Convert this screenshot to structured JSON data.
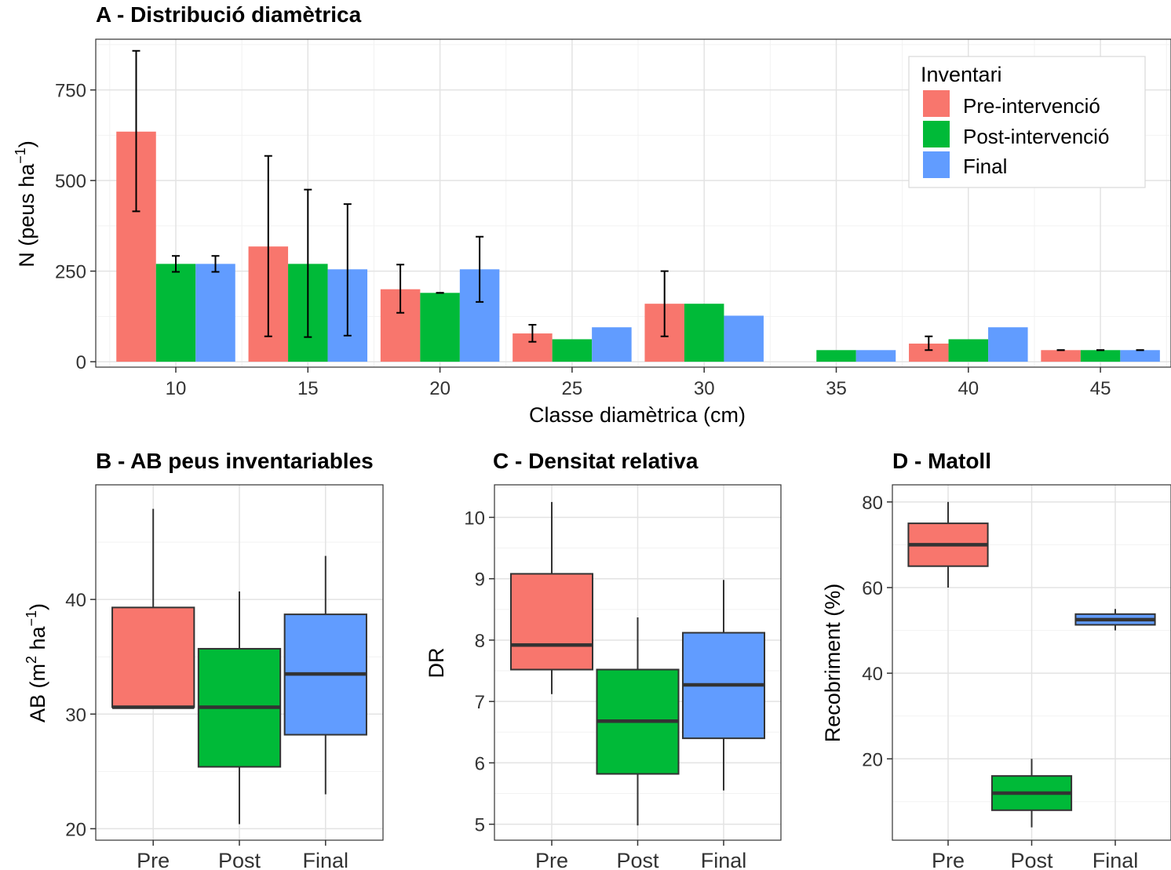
{
  "colors": {
    "pre": "#F8766D",
    "post": "#00BA38",
    "final": "#619CFF"
  },
  "chart_data": [
    {
      "id": "A",
      "type": "bar",
      "title": "A - Distribució diamètrica",
      "xlabel": "Classe diamètrica (cm)",
      "ylabel": {
        "main": "N (peus ha",
        "sup": "−1",
        "end": ")"
      },
      "categories": [
        "10",
        "15",
        "20",
        "25",
        "30",
        "35",
        "40",
        "45"
      ],
      "ylim": [
        -15,
        890
      ],
      "yticks": [
        0,
        250,
        500,
        750
      ],
      "legend": {
        "title": "Inventari",
        "position": "top-right"
      },
      "series": [
        {
          "name": "Pre-intervenció",
          "color": "#F8766D",
          "values": [
            635,
            318,
            200,
            78,
            160,
            null,
            50,
            32
          ],
          "err_low": [
            415,
            70,
            135,
            55,
            70,
            null,
            32,
            32
          ],
          "err_high": [
            858,
            568,
            268,
            102,
            250,
            null,
            70,
            32
          ]
        },
        {
          "name": "Post-intervenció",
          "color": "#00BA38",
          "values": [
            270,
            270,
            190,
            62,
            160,
            32,
            62,
            32
          ],
          "err_low": [
            248,
            68,
            190,
            null,
            null,
            null,
            null,
            32
          ],
          "err_high": [
            292,
            475,
            190,
            null,
            null,
            null,
            null,
            32
          ]
        },
        {
          "name": "Final",
          "color": "#619CFF",
          "values": [
            270,
            255,
            255,
            95,
            127,
            32,
            95,
            32
          ],
          "err_low": [
            248,
            72,
            165,
            null,
            null,
            null,
            null,
            32
          ],
          "err_high": [
            292,
            435,
            345,
            null,
            null,
            null,
            null,
            32
          ]
        }
      ],
      "grid": true
    },
    {
      "id": "B",
      "type": "box",
      "title": "B - AB peus inventariables",
      "ylabel": {
        "main": "AB (m",
        "sup": "2",
        "mid": " ha",
        "sup2": "−1",
        "end": ")"
      },
      "categories": [
        "Pre",
        "Post",
        "Final"
      ],
      "ylim": [
        19,
        50
      ],
      "yticks": [
        20,
        30,
        40
      ],
      "boxes": [
        {
          "name": "Pre",
          "min": 30.5,
          "q1": 30.6,
          "median": 30.6,
          "q3": 39.3,
          "max": 47.9
        },
        {
          "name": "Post",
          "min": 20.4,
          "q1": 25.4,
          "median": 30.6,
          "q3": 35.7,
          "max": 40.7
        },
        {
          "name": "Final",
          "min": 23.0,
          "q1": 28.2,
          "median": 33.5,
          "q3": 38.7,
          "max": 43.8
        }
      ],
      "grid": true
    },
    {
      "id": "C",
      "type": "box",
      "title": "C - Densitat relativa",
      "ylabel": {
        "main": "DR"
      },
      "categories": [
        "Pre",
        "Post",
        "Final"
      ],
      "ylim": [
        4.74,
        10.53
      ],
      "yticks": [
        5,
        6,
        7,
        8,
        9,
        10
      ],
      "boxes": [
        {
          "name": "Pre",
          "min": 7.12,
          "q1": 7.52,
          "median": 7.92,
          "q3": 9.08,
          "max": 10.25
        },
        {
          "name": "Post",
          "min": 4.98,
          "q1": 5.82,
          "median": 6.68,
          "q3": 7.52,
          "max": 8.37
        },
        {
          "name": "Final",
          "min": 5.55,
          "q1": 6.4,
          "median": 7.27,
          "q3": 8.12,
          "max": 8.98
        }
      ],
      "grid": true
    },
    {
      "id": "D",
      "type": "box",
      "title": "D - Matoll",
      "ylabel": {
        "main": "Recobriment (%)"
      },
      "categories": [
        "Pre",
        "Post",
        "Final"
      ],
      "ylim": [
        1,
        84
      ],
      "yticks": [
        20,
        40,
        60,
        80
      ],
      "boxes": [
        {
          "name": "Pre",
          "min": 60,
          "q1": 65,
          "median": 70,
          "q3": 75,
          "max": 80
        },
        {
          "name": "Post",
          "min": 4,
          "q1": 8,
          "median": 12,
          "q3": 16,
          "max": 20
        },
        {
          "name": "Final",
          "min": 50,
          "q1": 51.3,
          "median": 52.5,
          "q3": 53.8,
          "max": 55
        }
      ],
      "grid": true
    }
  ]
}
